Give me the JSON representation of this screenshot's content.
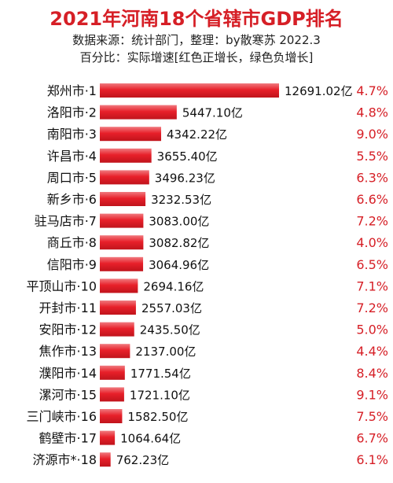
{
  "chart_data": {
    "type": "bar",
    "orientation": "horizontal",
    "title": "2021年河南18个省辖市GDP排名",
    "subtitle": "数据来源：统计部门，整理：by散寒苏 2022.3",
    "note": "百分比：实际增速[红色正增长，绿色负增长]",
    "categories": [
      "郑州市·1",
      "洛阳市·2",
      "南阳市·3",
      "许昌市·4",
      "周口市·5",
      "新乡市·6",
      "驻马店市·7",
      "商丘市·8",
      "信阳市·9",
      "平顶山市·10",
      "开封市·11",
      "安阳市·12",
      "焦作市·13",
      "濮阳市·14",
      "漯河市·15",
      "三门峡市·16",
      "鹤壁市·17",
      "济源市*·18"
    ],
    "series": [
      {
        "values": [
          12691.02,
          5447.1,
          4342.22,
          3655.4,
          3496.23,
          3232.53,
          3083.0,
          3082.82,
          3064.96,
          2694.16,
          2557.03,
          2435.5,
          2137.0,
          1771.54,
          1721.1,
          1582.5,
          1064.64,
          762.23
        ],
        "labels": [
          "12691.02亿",
          "5447.10亿",
          "4342.22亿",
          "3655.40亿",
          "3496.23亿",
          "3232.53亿",
          "3083.00亿",
          "3082.82亿",
          "3064.96亿",
          "2694.16亿",
          "2557.03亿",
          "2435.50亿",
          "2137.00亿",
          "1771.54亿",
          "1721.10亿",
          "1582.50亿",
          "1064.64亿",
          "762.23亿"
        ]
      }
    ],
    "growth": [
      "4.7%",
      "4.8%",
      "9.0%",
      "5.5%",
      "6.3%",
      "6.6%",
      "7.2%",
      "4.0%",
      "6.5%",
      "7.1%",
      "7.2%",
      "5.0%",
      "4.4%",
      "8.4%",
      "9.1%",
      "7.5%",
      "6.7%",
      "6.1%"
    ],
    "bar_color": "#e8202a",
    "growth_color": "#d61f26",
    "grid": false,
    "legend": "none"
  }
}
